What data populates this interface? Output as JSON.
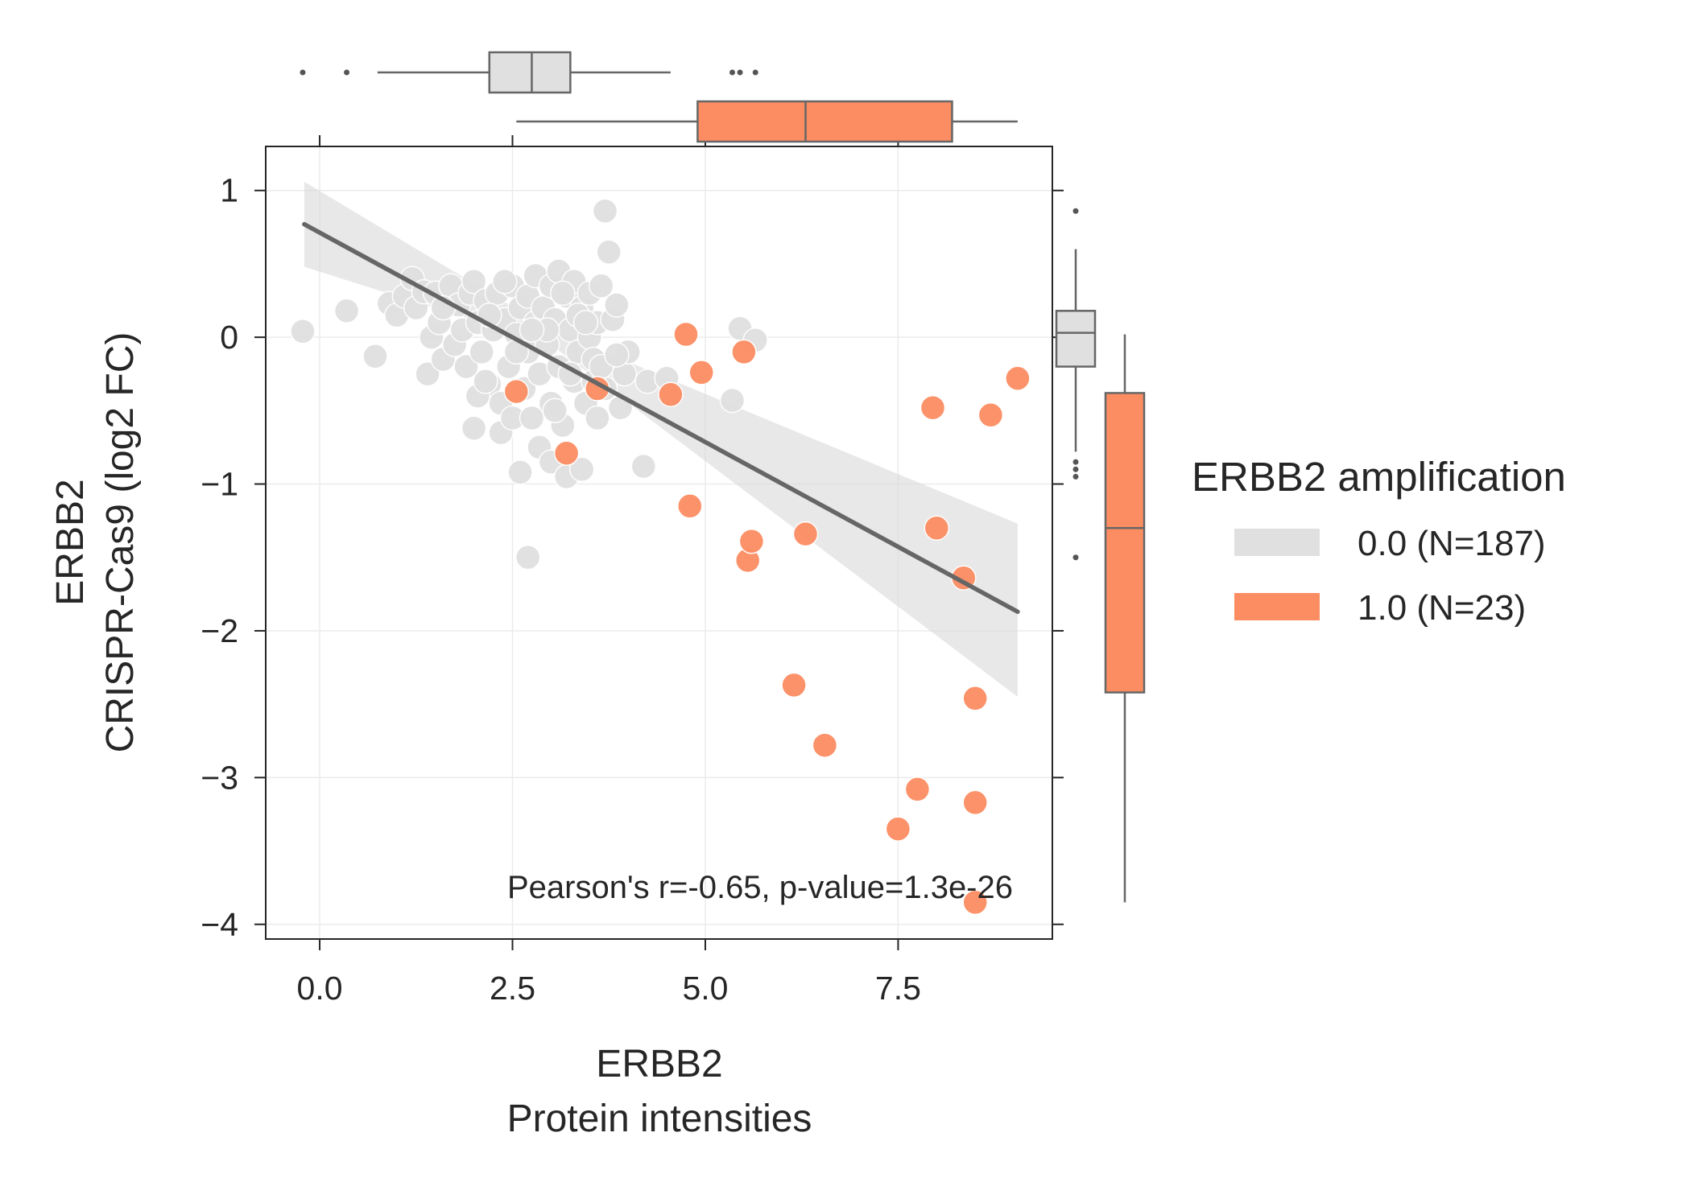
{
  "chart_data": {
    "type": "scatter",
    "subtype": "joint-plot with regression line, confidence band and marginal box plots",
    "xlabel_lines": [
      "ERBB2",
      "Protein intensities"
    ],
    "ylabel_lines": [
      "ERBB2",
      "CRISPR-Cas9 (log2 FC)"
    ],
    "xlim": [
      -0.7,
      9.5
    ],
    "ylim": [
      -4.1,
      1.3
    ],
    "x_ticks": [
      0.0,
      2.5,
      5.0,
      7.5
    ],
    "x_tick_labels": [
      "0.0",
      "2.5",
      "5.0",
      "7.5"
    ],
    "y_ticks": [
      1,
      0,
      -1,
      -2,
      -3,
      -4
    ],
    "y_tick_labels": [
      "1",
      "0",
      "−1",
      "−2",
      "−3",
      "−4"
    ],
    "grid": true,
    "annotation": "Pearson's r=-0.65, p-value=1.3e-26",
    "regression": {
      "x": [
        -0.2,
        9.05
      ],
      "y": [
        0.77,
        -1.87
      ],
      "ci_lower": [
        0.48,
        -2.45
      ],
      "ci_mid_x": 3.0,
      "ci_mid_lower": -0.05,
      "ci_mid_upper": 0.05,
      "ci_upper": [
        1.06,
        -1.27
      ],
      "color": "#666666"
    },
    "legend": {
      "title": "ERBB2 amplification",
      "placement": "right",
      "entries": [
        "0.0 (N=187)",
        "1.0 (N=23)"
      ]
    },
    "series": [
      {
        "name": "0.0 (N=187)",
        "color": "#e0e0e0",
        "points": [
          [
            -0.22,
            0.04
          ],
          [
            0.35,
            0.18
          ],
          [
            0.72,
            -0.13
          ],
          [
            0.9,
            0.23
          ],
          [
            1.0,
            0.15
          ],
          [
            1.1,
            0.28
          ],
          [
            1.2,
            0.4
          ],
          [
            1.25,
            0.2
          ],
          [
            1.35,
            0.31
          ],
          [
            1.4,
            -0.25
          ],
          [
            1.45,
            0.0
          ],
          [
            1.5,
            0.3
          ],
          [
            1.55,
            0.1
          ],
          [
            1.6,
            -0.15
          ],
          [
            1.7,
            0.35
          ],
          [
            1.75,
            -0.05
          ],
          [
            1.8,
            0.22
          ],
          [
            1.85,
            0.05
          ],
          [
            1.9,
            -0.2
          ],
          [
            1.95,
            0.3
          ],
          [
            2.0,
            0.38
          ],
          [
            2.0,
            -0.62
          ],
          [
            2.05,
            0.1
          ],
          [
            2.1,
            -0.1
          ],
          [
            2.15,
            0.25
          ],
          [
            2.2,
            -0.32
          ],
          [
            2.25,
            0.05
          ],
          [
            2.3,
            0.3
          ],
          [
            2.35,
            -0.45
          ],
          [
            2.35,
            -0.65
          ],
          [
            2.4,
            0.12
          ],
          [
            2.45,
            -0.2
          ],
          [
            2.5,
            0.35
          ],
          [
            2.5,
            -0.55
          ],
          [
            2.55,
            0.02
          ],
          [
            2.6,
            0.2
          ],
          [
            2.6,
            -0.92
          ],
          [
            2.65,
            -0.35
          ],
          [
            2.7,
            0.28
          ],
          [
            2.7,
            -0.1
          ],
          [
            2.75,
            -0.55
          ],
          [
            2.8,
            0.1
          ],
          [
            2.8,
            0.42
          ],
          [
            2.85,
            -0.25
          ],
          [
            2.85,
            -0.75
          ],
          [
            2.9,
            0.2
          ],
          [
            2.95,
            -0.05
          ],
          [
            3.0,
            0.35
          ],
          [
            3.0,
            -0.45
          ],
          [
            3.0,
            -0.85
          ],
          [
            3.05,
            0.12
          ],
          [
            3.1,
            -0.2
          ],
          [
            3.1,
            0.45
          ],
          [
            3.15,
            -0.6
          ],
          [
            3.2,
            0.28
          ],
          [
            3.2,
            -0.95
          ],
          [
            3.25,
            0.05
          ],
          [
            3.3,
            -0.3
          ],
          [
            3.3,
            0.38
          ],
          [
            3.35,
            -0.1
          ],
          [
            3.4,
            0.2
          ],
          [
            3.4,
            -0.9
          ],
          [
            3.45,
            -0.45
          ],
          [
            3.5,
            0.3
          ],
          [
            3.5,
            0.0
          ],
          [
            3.55,
            -0.15
          ],
          [
            3.6,
            0.1
          ],
          [
            3.6,
            -0.55
          ],
          [
            3.65,
            0.35
          ],
          [
            3.7,
            0.86
          ],
          [
            3.7,
            -0.35
          ],
          [
            3.75,
            0.58
          ],
          [
            3.8,
            0.12
          ],
          [
            3.85,
            0.22
          ],
          [
            3.9,
            -0.48
          ],
          [
            3.95,
            -0.25
          ],
          [
            4.0,
            -0.1
          ],
          [
            4.2,
            -0.88
          ],
          [
            4.25,
            -0.3
          ],
          [
            4.5,
            -0.28
          ],
          [
            5.35,
            -0.43
          ],
          [
            5.45,
            0.06
          ],
          [
            5.65,
            -0.02
          ],
          [
            2.7,
            -1.5
          ],
          [
            1.6,
            0.2
          ],
          [
            2.2,
            0.15
          ],
          [
            2.4,
            0.38
          ],
          [
            2.95,
            0.05
          ],
          [
            3.15,
            0.3
          ],
          [
            3.35,
            0.15
          ],
          [
            3.55,
            -0.3
          ],
          [
            2.05,
            -0.4
          ],
          [
            2.55,
            -0.1
          ],
          [
            2.75,
            0.05
          ],
          [
            3.05,
            -0.5
          ],
          [
            3.25,
            -0.25
          ],
          [
            3.45,
            0.1
          ],
          [
            3.65,
            -0.2
          ],
          [
            3.85,
            -0.12
          ],
          [
            2.15,
            -0.3
          ]
        ]
      },
      {
        "name": "1.0 (N=23)",
        "color": "#fc8d62",
        "points": [
          [
            2.55,
            -0.37
          ],
          [
            3.2,
            -0.79
          ],
          [
            3.6,
            -0.35
          ],
          [
            4.55,
            -0.39
          ],
          [
            4.75,
            0.02
          ],
          [
            4.8,
            -1.15
          ],
          [
            4.95,
            -0.24
          ],
          [
            5.5,
            -0.1
          ],
          [
            5.55,
            -1.52
          ],
          [
            5.6,
            -1.39
          ],
          [
            6.15,
            -2.37
          ],
          [
            6.3,
            -1.34
          ],
          [
            6.55,
            -2.78
          ],
          [
            7.5,
            -3.35
          ],
          [
            7.75,
            -3.08
          ],
          [
            7.95,
            -0.48
          ],
          [
            8.0,
            -1.3
          ],
          [
            8.35,
            -1.64
          ],
          [
            8.5,
            -2.46
          ],
          [
            8.5,
            -3.17
          ],
          [
            8.5,
            -3.85
          ],
          [
            8.7,
            -0.53
          ],
          [
            9.05,
            -0.28
          ]
        ]
      }
    ],
    "marginal_boxplots": {
      "x": [
        {
          "group": "0.0 (N=187)",
          "color": "#e0e0e0",
          "whisker_low": 0.75,
          "q1": 2.2,
          "median": 2.75,
          "q3": 3.25,
          "whisker_high": 4.55,
          "outliers": [
            -0.22,
            0.35,
            5.35,
            5.45,
            5.65
          ]
        },
        {
          "group": "1.0 (N=23)",
          "color": "#fc8d62",
          "whisker_low": 2.55,
          "q1": 4.9,
          "median": 6.3,
          "q3": 8.2,
          "whisker_high": 9.05,
          "outliers": []
        }
      ],
      "y": [
        {
          "group": "0.0 (N=187)",
          "color": "#e0e0e0",
          "whisker_low": -0.78,
          "q1": -0.2,
          "median": 0.03,
          "q3": 0.18,
          "whisker_high": 0.6,
          "outliers": [
            0.86,
            -0.85,
            -0.9,
            -0.95,
            -1.5
          ]
        },
        {
          "group": "1.0 (N=23)",
          "color": "#fc8d62",
          "whisker_low": -3.85,
          "q1": -2.42,
          "median": -1.3,
          "q3": -0.38,
          "whisker_high": 0.02,
          "outliers": []
        }
      ]
    }
  }
}
